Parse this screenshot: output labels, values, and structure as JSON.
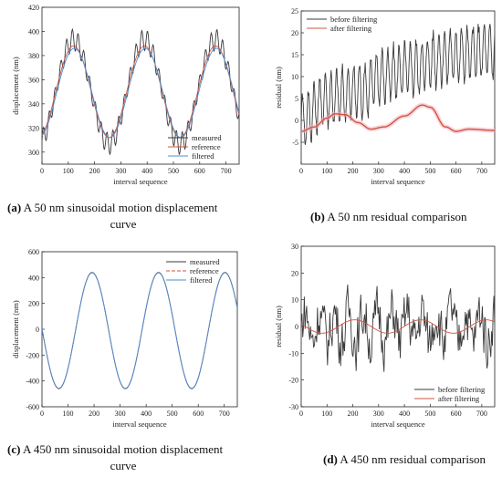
{
  "chart_data": [
    {
      "type": "line",
      "panel": "a",
      "caption_letter": "(a)",
      "caption_line1": "A 50 nm sinusoidal motion displacement",
      "caption_line2": "curve",
      "xlabel": "interval sequence",
      "ylabel": "displacement (nm)",
      "xlim": [
        0,
        750
      ],
      "ylim": [
        290,
        420
      ],
      "xticks": [
        "0",
        "100",
        "200",
        "300",
        "400",
        "500",
        "600",
        "700"
      ],
      "yticks": [
        "300",
        "320",
        "340",
        "360",
        "380",
        "400",
        "420"
      ],
      "legend_position": "bottom-right",
      "grid": false,
      "series": [
        {
          "name": "measured",
          "color": "#3a3a3a",
          "values_desc": "sinusoid center 350, amplitude 43, period 270, starting phase -0.5 with high-frequency ripple (period ~22) amplitude ~9",
          "center": 350,
          "amplitude": 43,
          "period": 270,
          "min_x": 255,
          "ripple_amp": 9,
          "ripple_period": 22
        },
        {
          "name": "reference",
          "color": "#d1543f",
          "center": 350,
          "amplitude": 38,
          "period": 270,
          "min_x": 255
        },
        {
          "name": "filtered",
          "color": "#4c8fd6",
          "center": 349,
          "amplitude": 37,
          "period": 270,
          "min_x": 258
        }
      ]
    },
    {
      "type": "line",
      "panel": "b",
      "caption_letter": "(b)",
      "caption_line1": "A 50 nm residual comparison",
      "xlabel": "interval sequence",
      "ylabel": "residual (nm)",
      "xlim": [
        0,
        750
      ],
      "ylim": [
        -10,
        25
      ],
      "xticks": [
        "0",
        "100",
        "200",
        "300",
        "400",
        "500",
        "600",
        "700"
      ],
      "yticks": [
        "-5",
        "0",
        "5",
        "10",
        "15",
        "20",
        "25"
      ],
      "legend_position": "top-left",
      "grid": false,
      "series": [
        {
          "name": "before filtering",
          "color": "#3a3a3a",
          "trend": [
            [
              0,
              0
            ],
            [
              100,
              5
            ],
            [
              250,
              7
            ],
            [
              300,
              10
            ],
            [
              450,
              12
            ],
            [
              520,
              14
            ],
            [
              600,
              15
            ],
            [
              750,
              16
            ]
          ],
          "ripple_amp": 6,
          "ripple_period": 22
        },
        {
          "name": "after filtering",
          "color": "#d1543f",
          "points": [
            [
              0,
              -2.5
            ],
            [
              50,
              -1.5
            ],
            [
              100,
              0.5
            ],
            [
              130,
              1.5
            ],
            [
              170,
              1.3
            ],
            [
              220,
              -0.5
            ],
            [
              270,
              -2
            ],
            [
              320,
              -1.5
            ],
            [
              400,
              1
            ],
            [
              470,
              3.5
            ],
            [
              500,
              3
            ],
            [
              560,
              -1.5
            ],
            [
              600,
              -2.5
            ],
            [
              650,
              -2
            ],
            [
              750,
              -2.3
            ]
          ]
        }
      ]
    },
    {
      "type": "line",
      "panel": "c",
      "caption_letter": "(c)",
      "caption_line1": "A 450 nm sinusoidal motion displacement",
      "caption_line2": "curve",
      "xlabel": "interval sequence",
      "ylabel": "displacement (nm)",
      "xlim": [
        0,
        750
      ],
      "ylim": [
        -600,
        600
      ],
      "xticks": [
        "0",
        "100",
        "200",
        "300",
        "400",
        "500",
        "600",
        "700"
      ],
      "yticks": [
        "-600",
        "-400",
        "-200",
        "0",
        "200",
        "400",
        "600"
      ],
      "legend_position": "top-right",
      "grid": false,
      "series": [
        {
          "name": "measured",
          "color": "#3a3a3a",
          "center": -10,
          "amplitude": 450,
          "period": 255,
          "min_x": 65
        },
        {
          "name": "reference",
          "color": "#d1543f",
          "dashed": true,
          "center": -10,
          "amplitude": 448,
          "period": 255,
          "min_x": 65
        },
        {
          "name": "filtered",
          "color": "#4c8fd6",
          "center": -10,
          "amplitude": 447,
          "period": 255,
          "min_x": 65
        }
      ]
    },
    {
      "type": "line",
      "panel": "d",
      "caption_letter": "(d)",
      "caption_line1": "A 450 nm residual comparison",
      "xlabel": "interval sequence",
      "ylabel": "residual (nm)",
      "xlim": [
        0,
        750
      ],
      "ylim": [
        -30,
        30
      ],
      "xticks": [
        "0",
        "100",
        "200",
        "300",
        "400",
        "500",
        "600",
        "700"
      ],
      "yticks": [
        "-30",
        "-20",
        "-10",
        "0",
        "10",
        "20",
        "30"
      ],
      "legend_position": "bottom-right",
      "grid": false,
      "series": [
        {
          "name": "before filtering",
          "color": "#3a3a3a",
          "noise_amp": 14
        },
        {
          "name": "after filtering",
          "color": "#d1543f",
          "center": 0,
          "amplitude": 2.5,
          "period": 255,
          "min_x": 80
        }
      ]
    }
  ]
}
